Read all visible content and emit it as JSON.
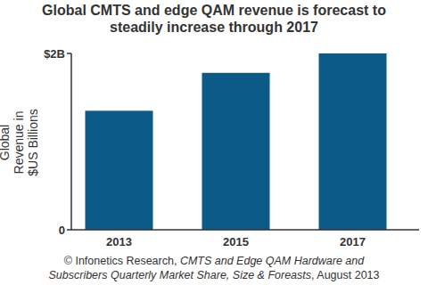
{
  "chart_data": {
    "type": "bar",
    "title": "Global CMTS and edge QAM revenue is forecast to steadily increase through 2017",
    "y_label": "Global Revenue in $US Billions",
    "categories": [
      "2013",
      "2015",
      "2017"
    ],
    "values": [
      1.35,
      1.78,
      2.0
    ],
    "color": "#0b5a87",
    "ylim": [
      0,
      2
    ],
    "yticks": [
      0,
      {
        "value": 2,
        "label": "$2B"
      }
    ],
    "grid": false,
    "source_prefix": "© Infonetics Research, ",
    "publication": "CMTS and Edge QAM Hardware and Subscribers Quarterly Market Share, Size & Foreasts",
    "source_suffix": ", August 2013"
  }
}
